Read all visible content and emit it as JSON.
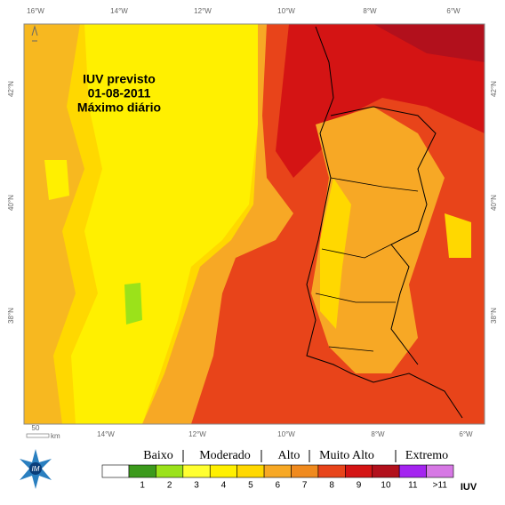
{
  "title": [
    "IUV previsto",
    "01-08-2011",
    "Máximo diário"
  ],
  "axes": {
    "top": [
      "16°W",
      "14°W",
      "12°W",
      "10°W",
      "8°W",
      "6°W"
    ],
    "bottom": [
      "14°W",
      "12°W",
      "10°W",
      "8°W",
      "6°W"
    ],
    "left": [
      "42°N",
      "40°N",
      "38°N"
    ],
    "right": [
      "42°N",
      "40°N",
      "38°N"
    ]
  },
  "scale": {
    "distance": "50",
    "unit": "km"
  },
  "legend": {
    "groups": [
      "Baixo",
      "Moderado",
      "Alto",
      "Muito Alto",
      "Extremo"
    ],
    "classes": [
      {
        "label": "1",
        "color": "#3c9a1c"
      },
      {
        "label": "2",
        "color": "#9be21a"
      },
      {
        "label": "3",
        "color": "#ffff30"
      },
      {
        "label": "4",
        "color": "#fff000"
      },
      {
        "label": "5",
        "color": "#ffd800"
      },
      {
        "label": "6",
        "color": "#f7a825"
      },
      {
        "label": "7",
        "color": "#f08a1e"
      },
      {
        "label": "8",
        "color": "#e8441a"
      },
      {
        "label": "9",
        "color": "#d41414"
      },
      {
        "label": "10",
        "color": "#b2101c"
      },
      {
        "label": "11",
        "color": "#a424f0"
      },
      {
        "label": ">11",
        "color": "#d678e4"
      }
    ],
    "unit": "IUV"
  }
}
